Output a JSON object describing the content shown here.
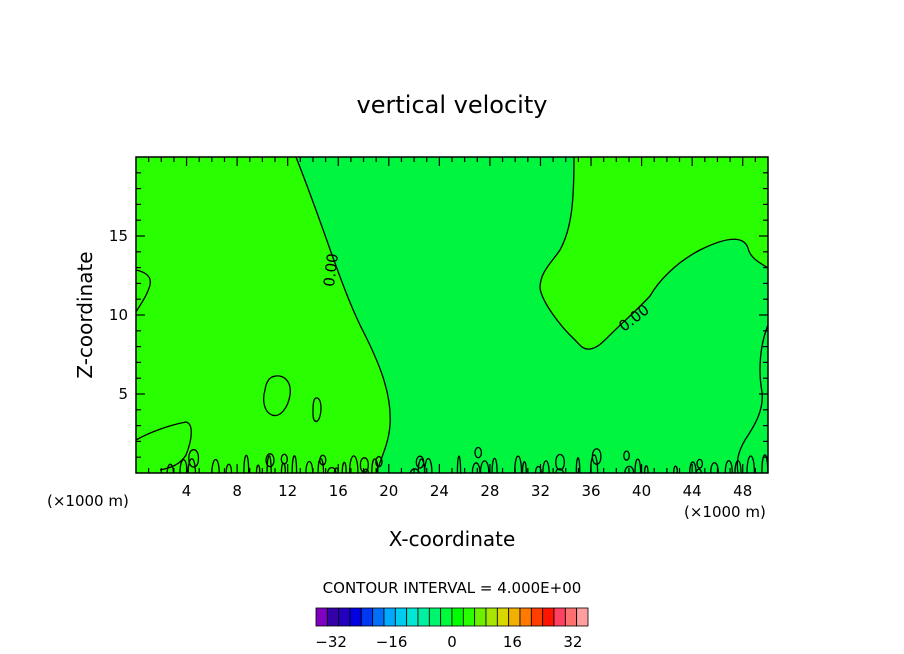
{
  "chart_data": {
    "type": "contour",
    "title": "vertical velocity",
    "xlabel": "X-coordinate",
    "ylabel": "Z-coordinate",
    "x_unit_left": "(×1000 m)",
    "x_unit_right": "(×1000 m)",
    "xlim": [
      0,
      50
    ],
    "ylim": [
      0,
      20
    ],
    "x_ticks": [
      4,
      8,
      12,
      16,
      20,
      24,
      28,
      32,
      36,
      40,
      44,
      48
    ],
    "y_ticks": [
      5,
      10,
      15
    ],
    "contour_labels": [
      "0.00",
      "0.00"
    ],
    "contour_interval_text": "CONTOUR INTERVAL = 4.000E+00",
    "colorbar": {
      "min": -36,
      "max": 36,
      "step": 4,
      "tick_labels": [
        -32,
        -16,
        0,
        16,
        32
      ],
      "colors": [
        "#7F00BF",
        "#3500A8",
        "#2300C0",
        "#0000E0",
        "#0038F2",
        "#0070FA",
        "#00A8FF",
        "#00CCF0",
        "#00E8D4",
        "#00F0A0",
        "#00F56E",
        "#00FA3C",
        "#00FF00",
        "#2AFF00",
        "#6CF000",
        "#A6E600",
        "#D8D800",
        "#F2B000",
        "#FF7A00",
        "#FF3E00",
        "#FF1400",
        "#FF4060",
        "#FF7070",
        "#FF9E9E"
      ]
    },
    "field_colors": {
      "positive": "#29FF00",
      "negative": "#00F53E"
    }
  }
}
